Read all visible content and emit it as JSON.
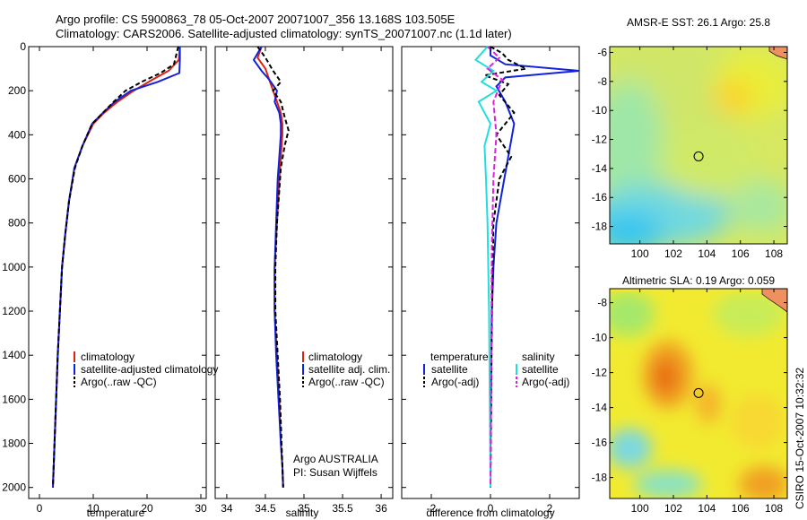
{
  "header": {
    "line1": "Argo profile: CS 5900863_78 05-Oct-2007 20071007_356 13.168S 103.505E",
    "line2": "Climatology: CARS2006. Satellite-adjusted climatology: synTS_20071007.nc (1.1d later)"
  },
  "credit": "CSIRO 15-Oct-2007 10:32:32",
  "colors": {
    "climatology": "#dd2211",
    "satellite": "#1122dd",
    "satellite_light": "#22dddd",
    "argo": "#000000",
    "argo_adj": "#dd22dd"
  },
  "chart_data": [
    {
      "id": "temperature",
      "type": "line",
      "xlabel": "temperature",
      "xlim": [
        -2,
        31
      ],
      "ylim": [
        2050,
        0
      ],
      "xticks": [
        0,
        10,
        20,
        30
      ],
      "yticks": [
        0,
        200,
        400,
        600,
        800,
        1000,
        1200,
        1400,
        1600,
        1800,
        2000
      ],
      "legend": [
        "climatology",
        "satellite-adjusted climatology",
        "Argo(..raw -QC)"
      ],
      "series": [
        {
          "name": "climatology",
          "color": "#dd2211",
          "dash": "",
          "x": [
            26.1,
            25.9,
            24.0,
            21.0,
            17.5,
            14.5,
            12.0,
            10.0,
            8.0,
            6.5,
            5.5,
            4.8,
            4.2,
            3.8,
            3.4,
            3.1,
            2.8,
            2.5
          ],
          "y": [
            0,
            60,
            110,
            150,
            200,
            250,
            300,
            350,
            450,
            550,
            700,
            850,
            1000,
            1200,
            1400,
            1600,
            1800,
            2000
          ]
        },
        {
          "name": "satellite-adjusted climatology",
          "color": "#1122dd",
          "dash": "",
          "x": [
            26.1,
            26.1,
            26.0,
            22.0,
            17.0,
            14.0,
            11.8,
            9.8,
            8.0,
            6.5,
            5.5,
            4.8,
            4.2,
            3.8,
            3.4,
            3.1,
            2.8,
            2.5
          ],
          "y": [
            0,
            60,
            120,
            160,
            200,
            250,
            300,
            350,
            450,
            550,
            700,
            850,
            1000,
            1200,
            1400,
            1600,
            1800,
            2000
          ]
        },
        {
          "name": "Argo(..raw -QC)",
          "color": "#000000",
          "dash": "5,3",
          "x": [
            25.8,
            25.0,
            22.5,
            19.0,
            16.0,
            13.8,
            11.8,
            9.8,
            8.0,
            6.6,
            5.5,
            4.8,
            4.2,
            3.8,
            3.4,
            3.1,
            2.8,
            2.5
          ],
          "y": [
            0,
            80,
            120,
            160,
            200,
            250,
            300,
            350,
            450,
            550,
            700,
            850,
            1000,
            1200,
            1400,
            1600,
            1800,
            2000
          ]
        }
      ]
    },
    {
      "id": "salinity",
      "type": "line",
      "xlabel": "salinity",
      "xlim": [
        33.85,
        36.15
      ],
      "ylim": [
        2050,
        0
      ],
      "xticks": [
        34,
        34.5,
        35,
        35.5,
        36
      ],
      "legend": [
        "climatology",
        "satellite adj. clim.",
        "Argo(..raw -QC)"
      ],
      "annotation": [
        "Argo AUSTRALIA",
        "PI: Susan Wijffels"
      ],
      "series": [
        {
          "name": "climatology",
          "color": "#dd2211",
          "dash": "",
          "x": [
            34.45,
            34.4,
            34.5,
            34.55,
            34.6,
            34.65,
            34.7,
            34.72,
            34.72,
            34.7,
            34.68,
            34.65,
            34.62,
            34.62,
            34.65,
            34.68,
            34.7,
            34.72,
            34.73
          ],
          "y": [
            0,
            50,
            100,
            150,
            200,
            250,
            300,
            350,
            400,
            500,
            600,
            800,
            1000,
            1200,
            1400,
            1600,
            1800,
            1900,
            2000
          ]
        },
        {
          "name": "satellite adj. clim.",
          "color": "#1122dd",
          "dash": "",
          "x": [
            34.45,
            34.35,
            34.45,
            34.55,
            34.65,
            34.62,
            34.68,
            34.7,
            34.7,
            34.68,
            34.66,
            34.64,
            34.62,
            34.62,
            34.64,
            34.67,
            34.7,
            34.72,
            34.73
          ],
          "y": [
            0,
            60,
            110,
            150,
            200,
            250,
            300,
            350,
            400,
            500,
            600,
            800,
            1000,
            1200,
            1400,
            1600,
            1800,
            1900,
            2000
          ]
        },
        {
          "name": "Argo(..raw -QC)",
          "color": "#000000",
          "dash": "5,3",
          "x": [
            34.4,
            34.5,
            34.6,
            34.7,
            34.6,
            34.7,
            34.75,
            34.8,
            34.75,
            34.7,
            34.68,
            34.65,
            34.63,
            34.63,
            34.66,
            34.69,
            34.71,
            34.73
          ],
          "y": [
            0,
            50,
            110,
            160,
            200,
            250,
            320,
            380,
            450,
            550,
            650,
            800,
            1000,
            1200,
            1400,
            1600,
            1800,
            2000
          ]
        }
      ]
    },
    {
      "id": "difference",
      "type": "line",
      "xlabel": "difference from climatology",
      "xlim": [
        -3,
        3
      ],
      "ylim": [
        2050,
        0
      ],
      "xticks": [
        -2,
        0,
        2
      ],
      "legend_left_title": "temperature",
      "legend_right_title": "salinity",
      "legend_left": [
        "satellite",
        "Argo(-adj)"
      ],
      "legend_right": [
        "satellite",
        "Argo(-adj)"
      ],
      "series": [
        {
          "name": "temperature satellite",
          "color": "#1122dd",
          "dash": "",
          "x": [
            0.0,
            0.0,
            0.5,
            3.0,
            0.5,
            0.2,
            0.5,
            0.8,
            0.6,
            0.4,
            0.2,
            0.1,
            0.05,
            0.02,
            0.0,
            0.0
          ],
          "y": [
            0,
            40,
            80,
            110,
            140,
            180,
            250,
            350,
            500,
            650,
            800,
            1000,
            1200,
            1500,
            1800,
            2000
          ]
        },
        {
          "name": "temperature Argo(-adj)",
          "color": "#000000",
          "dash": "5,3",
          "x": [
            0.0,
            0.4,
            0.6,
            1.2,
            -0.2,
            0.6,
            0.3,
            0.8,
            0.2,
            0.7,
            0.3,
            0.1,
            0.05,
            0.0
          ],
          "y": [
            0,
            30,
            60,
            100,
            130,
            170,
            220,
            300,
            400,
            500,
            600,
            800,
            1200,
            2000
          ]
        },
        {
          "name": "salinity satellite",
          "color": "#22dddd",
          "dash": "",
          "x": [
            -0.1,
            -0.5,
            0.1,
            -0.3,
            0.2,
            -0.4,
            0.0,
            -0.2,
            -0.15,
            -0.1,
            -0.05,
            0.0
          ],
          "y": [
            0,
            60,
            110,
            160,
            200,
            250,
            350,
            450,
            600,
            800,
            1200,
            2000
          ]
        },
        {
          "name": "salinity Argo(-adj)",
          "color": "#dd22dd",
          "dash": "6,3",
          "x": [
            -0.1,
            0.3,
            -0.1,
            0.4,
            0.1,
            0.2,
            0.1,
            0.05,
            0.0
          ],
          "y": [
            0,
            50,
            100,
            150,
            250,
            400,
            600,
            900,
            2000
          ]
        }
      ]
    },
    {
      "id": "sst",
      "type": "heatmap",
      "title": "AMSR-E SST: 26.1 Argo: 25.8",
      "xlim": [
        98.2,
        108.8
      ],
      "ylim": [
        -19.2,
        -5.6
      ],
      "xticks": [
        100,
        102,
        104,
        106,
        108
      ],
      "yticks": [
        -6,
        -8,
        -10,
        -12,
        -14,
        -16,
        -18
      ],
      "float_position": [
        103.505,
        -13.168
      ]
    },
    {
      "id": "sla",
      "type": "heatmap",
      "title": "Altimetric SLA: 0.19 Argo: 0.059",
      "xlim": [
        98.2,
        108.8
      ],
      "ylim": [
        -19.2,
        -7.2
      ],
      "xticks": [
        100,
        102,
        104,
        106,
        108
      ],
      "yticks": [
        -8,
        -10,
        -12,
        -14,
        -16,
        -18
      ],
      "float_position": [
        103.505,
        -13.168
      ]
    }
  ]
}
